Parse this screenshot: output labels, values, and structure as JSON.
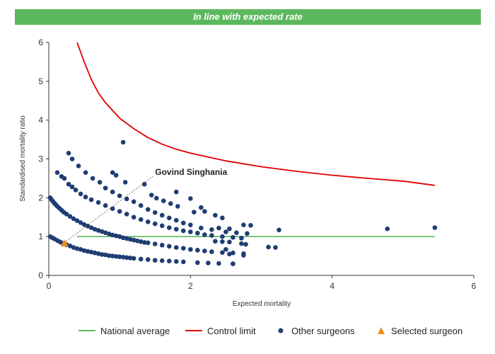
{
  "banner": {
    "text": "In line with expected rate"
  },
  "colors": {
    "banner": "#5cb85c",
    "national_average": "#5cb85c",
    "control_limit": "#e00000",
    "other_surgeons": "#1f3d73",
    "selected_surgeon": "#f08c1a"
  },
  "chart_data": {
    "type": "scatter",
    "xlabel": "Expected mortality",
    "ylabel": "Standardised mortality ratio",
    "xlim": [
      0,
      6
    ],
    "ylim": [
      0,
      6
    ],
    "xticks": [
      "0",
      "2",
      "4",
      "6"
    ],
    "yticks": [
      "0",
      "1",
      "2",
      "3",
      "4",
      "5",
      "6"
    ],
    "grid": false,
    "legend_position": "bottom",
    "annotation": {
      "text": "Govind Singhania",
      "x": 1.5,
      "y": 2.55
    },
    "series": [
      {
        "name": "National average",
        "kind": "line",
        "x": [
          0.4,
          5.45
        ],
        "y": [
          1,
          1
        ]
      },
      {
        "name": "Control limit",
        "kind": "curve",
        "x": [
          0.4,
          0.5,
          0.6,
          0.7,
          0.8,
          1.0,
          1.2,
          1.4,
          1.6,
          1.8,
          2.0,
          2.5,
          3.0,
          3.5,
          4.0,
          4.5,
          5.0,
          5.45
        ],
        "y": [
          6.0,
          5.5,
          5.05,
          4.7,
          4.45,
          4.05,
          3.78,
          3.55,
          3.38,
          3.25,
          3.15,
          2.95,
          2.8,
          2.68,
          2.58,
          2.5,
          2.43,
          2.32
        ]
      },
      {
        "name": "Other surgeons",
        "kind": "scatter",
        "points": [
          [
            0.02,
            2.0
          ],
          [
            0.04,
            1.95
          ],
          [
            0.06,
            1.9
          ],
          [
            0.08,
            1.86
          ],
          [
            0.1,
            1.82
          ],
          [
            0.12,
            1.78
          ],
          [
            0.15,
            1.73
          ],
          [
            0.18,
            1.68
          ],
          [
            0.21,
            1.63
          ],
          [
            0.25,
            1.58
          ],
          [
            0.3,
            1.52
          ],
          [
            0.35,
            1.46
          ],
          [
            0.4,
            1.41
          ],
          [
            0.45,
            1.36
          ],
          [
            0.5,
            1.31
          ],
          [
            0.55,
            1.27
          ],
          [
            0.6,
            1.23
          ],
          [
            0.65,
            1.19
          ],
          [
            0.7,
            1.16
          ],
          [
            0.75,
            1.13
          ],
          [
            0.8,
            1.1
          ],
          [
            0.85,
            1.07
          ],
          [
            0.9,
            1.04
          ],
          [
            0.95,
            1.02
          ],
          [
            1.0,
            1.0
          ],
          [
            1.05,
            0.97
          ],
          [
            1.1,
            0.95
          ],
          [
            1.15,
            0.93
          ],
          [
            1.2,
            0.91
          ],
          [
            1.25,
            0.89
          ],
          [
            1.3,
            0.87
          ],
          [
            1.35,
            0.85
          ],
          [
            1.4,
            0.84
          ],
          [
            1.5,
            0.81
          ],
          [
            1.6,
            0.78
          ],
          [
            1.7,
            0.75
          ],
          [
            1.8,
            0.72
          ],
          [
            1.9,
            0.7
          ],
          [
            2.0,
            0.67
          ],
          [
            2.1,
            0.65
          ],
          [
            2.2,
            0.63
          ],
          [
            2.3,
            0.61
          ],
          [
            2.45,
            0.59
          ],
          [
            2.6,
            0.58
          ],
          [
            2.75,
            0.56
          ],
          [
            0.02,
            1.0
          ],
          [
            0.05,
            0.97
          ],
          [
            0.08,
            0.94
          ],
          [
            0.12,
            0.9
          ],
          [
            0.16,
            0.86
          ],
          [
            0.2,
            0.83
          ],
          [
            0.25,
            0.79
          ],
          [
            0.3,
            0.76
          ],
          [
            0.35,
            0.72
          ],
          [
            0.4,
            0.69
          ],
          [
            0.45,
            0.67
          ],
          [
            0.5,
            0.64
          ],
          [
            0.55,
            0.62
          ],
          [
            0.6,
            0.6
          ],
          [
            0.65,
            0.58
          ],
          [
            0.7,
            0.56
          ],
          [
            0.75,
            0.54
          ],
          [
            0.8,
            0.53
          ],
          [
            0.85,
            0.51
          ],
          [
            0.9,
            0.5
          ],
          [
            0.95,
            0.49
          ],
          [
            1.0,
            0.48
          ],
          [
            1.05,
            0.47
          ],
          [
            1.1,
            0.46
          ],
          [
            1.15,
            0.45
          ],
          [
            1.2,
            0.44
          ],
          [
            1.3,
            0.42
          ],
          [
            1.4,
            0.41
          ],
          [
            1.5,
            0.39
          ],
          [
            1.6,
            0.38
          ],
          [
            1.7,
            0.37
          ],
          [
            1.8,
            0.36
          ],
          [
            1.9,
            0.35
          ],
          [
            2.1,
            0.33
          ],
          [
            2.25,
            0.32
          ],
          [
            2.4,
            0.31
          ],
          [
            2.6,
            0.3
          ],
          [
            0.12,
            2.65
          ],
          [
            0.18,
            2.55
          ],
          [
            0.22,
            2.5
          ],
          [
            0.28,
            2.35
          ],
          [
            0.33,
            2.28
          ],
          [
            0.38,
            2.2
          ],
          [
            0.45,
            2.1
          ],
          [
            0.52,
            2.02
          ],
          [
            0.6,
            1.95
          ],
          [
            0.7,
            1.88
          ],
          [
            0.8,
            1.8
          ],
          [
            0.9,
            1.72
          ],
          [
            1.0,
            1.65
          ],
          [
            1.1,
            1.58
          ],
          [
            1.2,
            1.5
          ],
          [
            1.3,
            1.44
          ],
          [
            1.4,
            1.38
          ],
          [
            1.5,
            1.33
          ],
          [
            1.6,
            1.28
          ],
          [
            1.7,
            1.23
          ],
          [
            1.8,
            1.19
          ],
          [
            1.9,
            1.15
          ],
          [
            2.0,
            1.12
          ],
          [
            2.1,
            1.09
          ],
          [
            2.2,
            1.05
          ],
          [
            2.3,
            1.03
          ],
          [
            2.45,
            1.0
          ],
          [
            2.6,
            0.98
          ],
          [
            2.72,
            0.96
          ],
          [
            0.28,
            3.15
          ],
          [
            0.33,
            3.0
          ],
          [
            0.42,
            2.82
          ],
          [
            0.52,
            2.65
          ],
          [
            0.62,
            2.5
          ],
          [
            0.72,
            2.4
          ],
          [
            0.8,
            2.25
          ],
          [
            0.9,
            2.15
          ],
          [
            1.0,
            2.05
          ],
          [
            1.1,
            1.97
          ],
          [
            1.2,
            1.9
          ],
          [
            1.3,
            1.8
          ],
          [
            1.4,
            1.7
          ],
          [
            1.5,
            1.62
          ],
          [
            1.6,
            1.55
          ],
          [
            1.7,
            1.48
          ],
          [
            1.8,
            1.42
          ],
          [
            1.9,
            1.35
          ],
          [
            2.0,
            1.3
          ],
          [
            2.15,
            1.22
          ],
          [
            2.3,
            1.18
          ],
          [
            2.5,
            1.12
          ],
          [
            2.65,
            1.1
          ],
          [
            2.8,
            1.08
          ],
          [
            0.9,
            2.65
          ],
          [
            0.95,
            2.58
          ],
          [
            1.08,
            2.4
          ],
          [
            1.35,
            2.35
          ],
          [
            1.45,
            2.07
          ],
          [
            1.52,
            1.99
          ],
          [
            1.62,
            1.92
          ],
          [
            1.72,
            1.85
          ],
          [
            1.8,
            2.15
          ],
          [
            1.82,
            1.78
          ],
          [
            2.0,
            1.98
          ],
          [
            2.05,
            1.63
          ],
          [
            2.15,
            1.75
          ],
          [
            2.2,
            1.65
          ],
          [
            2.35,
            1.55
          ],
          [
            2.45,
            1.48
          ],
          [
            2.4,
            1.22
          ],
          [
            2.55,
            1.2
          ],
          [
            2.75,
            1.3
          ],
          [
            2.85,
            1.29
          ],
          [
            3.25,
            1.17
          ],
          [
            2.35,
            0.88
          ],
          [
            2.45,
            0.87
          ],
          [
            2.55,
            0.86
          ],
          [
            2.72,
            0.82
          ],
          [
            2.78,
            0.8
          ],
          [
            2.5,
            0.67
          ],
          [
            2.55,
            0.55
          ],
          [
            2.75,
            0.52
          ],
          [
            3.1,
            0.73
          ],
          [
            3.2,
            0.72
          ],
          [
            2.6,
            0.3
          ],
          [
            1.05,
            3.43
          ],
          [
            4.78,
            1.2
          ],
          [
            5.45,
            1.23
          ]
        ]
      },
      {
        "name": "Selected surgeon",
        "kind": "marker",
        "points": [
          [
            0.22,
            0.82
          ]
        ]
      }
    ]
  },
  "legend": {
    "national_average": "National average",
    "control_limit": "Control limit",
    "other_surgeons": "Other surgeons",
    "selected_surgeon": "Selected surgeon"
  }
}
